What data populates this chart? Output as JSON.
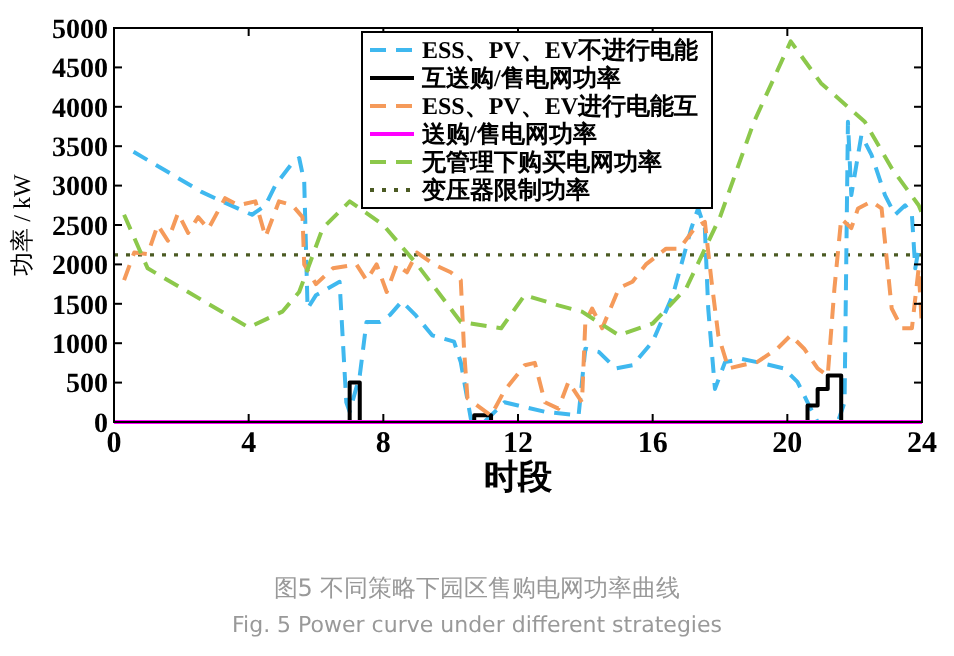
{
  "chart_data": {
    "type": "line",
    "title": "图5 不同策略下园区售购电网功率曲线",
    "subtitle": "Fig. 5 Power curve under different strategies",
    "xlabel": "时段",
    "ylabel": "功率 / kW",
    "xlim": [
      0,
      24
    ],
    "xticks": [
      0,
      4,
      8,
      12,
      16,
      20,
      24
    ],
    "ylim": [
      0,
      5000
    ],
    "yticks": [
      0,
      500,
      1000,
      1500,
      2000,
      2500,
      3000,
      3500,
      4000,
      4500,
      5000
    ],
    "grid": false,
    "legend": "top right",
    "series": [
      {
        "name": "ESS、PV、EV不进行电能",
        "color": "#3fb8ef",
        "line_style": "dashed",
        "x": [
          0.58,
          2.6,
          3.2,
          4.1,
          4.5,
          4.8,
          5.25,
          5.5,
          5.65,
          5.75,
          6.0,
          6.7,
          6.9,
          7.0,
          7.3,
          7.5,
          7.9,
          8.2,
          8.55,
          8.95,
          9.45,
          10.1,
          10.3,
          10.6,
          11.0,
          11.6,
          12,
          12.8,
          13.8,
          14.0,
          14.4,
          14.9,
          15.4,
          16.0,
          16.6,
          17.15,
          17.35,
          17.55,
          17.65,
          17.85,
          18.15,
          18.65,
          19.1,
          19.9,
          20.3,
          20.6,
          20.9,
          21.5,
          21.7,
          21.8,
          21.9,
          22.2,
          22.5,
          22.9,
          23.2,
          23.5,
          23.7,
          23.8,
          23.9
        ],
        "values": [
          3430,
          2920,
          2800,
          2630,
          2750,
          3010,
          3260,
          3350,
          3050,
          1440,
          1610,
          1780,
          250,
          130,
          590,
          1270,
          1270,
          1360,
          1530,
          1360,
          1100,
          1020,
          760,
          40,
          0,
          250,
          210,
          130,
          85,
          930,
          890,
          680,
          720,
          1020,
          1610,
          2460,
          2710,
          2460,
          1440,
          420,
          760,
          800,
          760,
          680,
          510,
          250,
          0,
          0,
          250,
          3810,
          2880,
          3640,
          3390,
          2880,
          2630,
          2750,
          2630,
          1950,
          2200
        ]
      },
      {
        "name": "互送购/售电网功率",
        "color": "#000000",
        "type": "step",
        "line_style": "solid",
        "x": [
          0,
          7.0,
          7.3,
          10.7,
          11.2,
          20.6,
          20.9,
          21.2,
          21.6,
          24
        ],
        "values": [
          0,
          500,
          0,
          85,
          0,
          210,
          420,
          590,
          0,
          0
        ]
      },
      {
        "name": "ESS、PV、EV进行电能互",
        "color": "#f59a5a",
        "line_style": "dashed",
        "x": [
          0.3,
          0.6,
          1,
          1.3,
          1.6,
          1.9,
          2.2,
          2.5,
          2.8,
          3.3,
          3.7,
          4.2,
          4.5,
          4.9,
          5.3,
          5.6,
          5.65,
          6.0,
          6.5,
          7.2,
          7.5,
          7.8,
          8.1,
          8.4,
          8.7,
          9.0,
          9.5,
          10.0,
          10.3,
          10.4,
          10.5,
          11.2,
          11.6,
          12.2,
          12.5,
          12.8,
          13.2,
          13.5,
          13.9,
          14,
          14.2,
          14.5,
          15.0,
          15.4,
          15.8,
          16.4,
          16.8,
          17.25,
          17.55,
          17.75,
          17.95,
          18.25,
          18.65,
          19.1,
          19.7,
          20.1,
          20.5,
          20.9,
          21.2,
          21.4,
          21.6,
          21.9,
          22.1,
          22.5,
          22.8,
          22.9,
          23.1,
          23.4,
          23.7,
          23.9,
          24
        ],
        "values": [
          1800,
          2150,
          2130,
          2500,
          2300,
          2650,
          2400,
          2600,
          2450,
          2840,
          2750,
          2800,
          2350,
          2800,
          2750,
          2600,
          2000,
          1750,
          1950,
          2000,
          1800,
          2000,
          1650,
          2000,
          1900,
          2150,
          2000,
          1900,
          1800,
          900,
          300,
          80,
          400,
          720,
          750,
          250,
          170,
          510,
          250,
          1270,
          1440,
          1190,
          1700,
          1780,
          2000,
          2200,
          2200,
          2460,
          2540,
          1780,
          1100,
          680,
          720,
          760,
          930,
          1100,
          930,
          680,
          590,
          1700,
          2580,
          2460,
          2710,
          2800,
          2710,
          2290,
          1440,
          1190,
          1190,
          1950,
          1190
        ]
      },
      {
        "name": "送购/售电网功率",
        "color": "#ff00ff",
        "line_style": "solid",
        "x": [
          0,
          24
        ],
        "values": [
          0,
          0
        ]
      },
      {
        "name": "无管理下购买电网功率",
        "color": "#8cc84b",
        "line_style": "dashed",
        "x": [
          0.3,
          1,
          2,
          4,
          5,
          5.5,
          6.2,
          7,
          8,
          9,
          10.3,
          11.5,
          12.2,
          13.2,
          13.9,
          15,
          16,
          17,
          18,
          19,
          20.1,
          21,
          22.3,
          23.1,
          23.9,
          24
        ],
        "values": [
          2630,
          1950,
          1700,
          1200,
          1400,
          1650,
          2460,
          2800,
          2500,
          2000,
          1270,
          1190,
          1610,
          1480,
          1400,
          1100,
          1250,
          1700,
          2600,
          3800,
          4830,
          4300,
          3810,
          3220,
          2750,
          2650
        ]
      }
    ],
    "ref_lines": [
      {
        "axis": "y",
        "value": 2120,
        "label": "变压器限制功率",
        "color": "#4b5a23",
        "line_style": "dotted"
      }
    ]
  }
}
